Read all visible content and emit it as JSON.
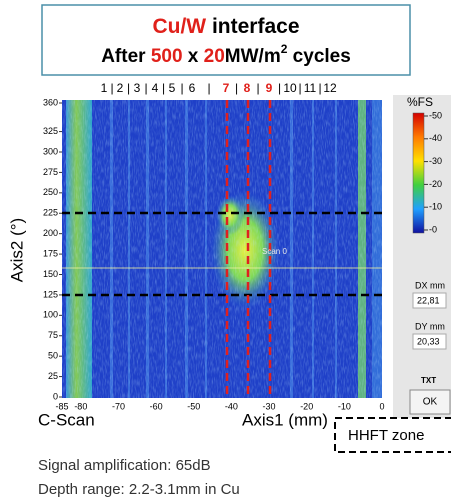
{
  "header": {
    "line1": [
      "Cu/W",
      " interface"
    ],
    "line2": [
      "After ",
      "500",
      " x ",
      "20",
      "MW/m",
      "2",
      " cycles"
    ]
  },
  "columns": {
    "labels": [
      "1",
      "2",
      "3",
      "4",
      "5",
      "6",
      "7",
      "8",
      "9",
      "10",
      "11",
      "12"
    ],
    "separator": "|"
  },
  "plot": {
    "y_axis_title": "Axis2 (°)",
    "x_axis_title": "Axis1 (mm)",
    "view_label": "C-Scan",
    "overlay_label": "Scan 0",
    "y_tick_labels": [
      "360",
      "325",
      "300",
      "275",
      "250",
      "225",
      "200",
      "175",
      "150",
      "125",
      "100",
      "75",
      "50",
      "25",
      "0"
    ],
    "x_tick_labels": [
      "-85",
      "-80",
      "-70",
      "-60",
      "-50",
      "-40",
      "-30",
      "-20",
      "-10",
      "0"
    ]
  },
  "colorbar": {
    "unit": "%FS",
    "labels": [
      "-50",
      "-40",
      "-30",
      "-20",
      "-10",
      "-0"
    ]
  },
  "panel": {
    "dx_label": "DX mm",
    "dx_value": "22,81",
    "dy_label": "DY mm",
    "dy_value": "20,33",
    "txt_label": "TXT",
    "ok_button": "OK"
  },
  "zone_label": "HHFT zone",
  "footer": [
    "Signal amplification: 65dB",
    "Depth range: 2.2-3.1mm in Cu"
  ]
}
